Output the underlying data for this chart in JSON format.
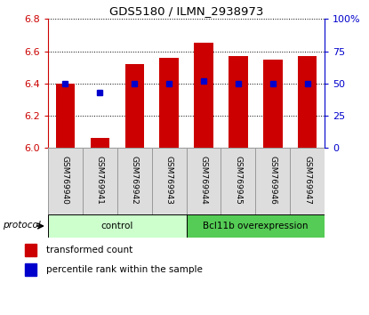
{
  "title": "GDS5180 / ILMN_2938973",
  "samples": [
    "GSM769940",
    "GSM769941",
    "GSM769942",
    "GSM769943",
    "GSM769944",
    "GSM769945",
    "GSM769946",
    "GSM769947"
  ],
  "transformed_counts": [
    6.4,
    6.06,
    6.52,
    6.56,
    6.65,
    6.57,
    6.55,
    6.57
  ],
  "percentile_ranks": [
    50,
    43,
    50,
    50,
    52,
    50,
    50,
    50
  ],
  "ylim_left": [
    6.0,
    6.8
  ],
  "ylim_right": [
    0,
    100
  ],
  "yticks_left": [
    6.0,
    6.2,
    6.4,
    6.6,
    6.8
  ],
  "yticks_right": [
    0,
    25,
    50,
    75,
    100
  ],
  "bar_color": "#cc0000",
  "dot_color": "#0000cc",
  "bg_color": "#ffffff",
  "grid_color": "#000000",
  "n_control": 4,
  "n_treatment": 4,
  "control_label": "control",
  "treatment_label": "Bcl11b overexpression",
  "control_bg": "#ccffcc",
  "treatment_bg": "#55cc55",
  "protocol_label": "protocol",
  "legend_red": "transformed count",
  "legend_blue": "percentile rank within the sample",
  "tick_label_color_left": "#cc0000",
  "tick_label_color_right": "#0000cc"
}
